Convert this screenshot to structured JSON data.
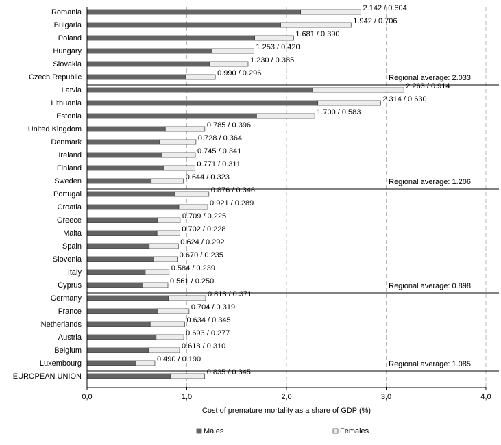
{
  "chart_data": {
    "type": "bar",
    "orientation": "horizontal",
    "stacked": true,
    "xlabel": "Cost of premature mortality as a share of GDP (%)",
    "ylabel": "",
    "title": "",
    "xlim": [
      0,
      4
    ],
    "x_ticks": [
      "0,0",
      "1,0",
      "2,0",
      "3,0",
      "4,0"
    ],
    "grid": "vertical dashed",
    "legend_position": "bottom",
    "colors": {
      "males": "#646464",
      "females": "#ececec",
      "outline": "#333333"
    },
    "series": [
      {
        "name": "Males",
        "values": [
          2.142,
          1.942,
          1.681,
          1.253,
          1.23,
          0.99,
          2.263,
          2.314,
          1.7,
          0.785,
          0.728,
          0.745,
          0.771,
          0.644,
          0.876,
          0.921,
          0.709,
          0.702,
          0.624,
          0.67,
          0.584,
          0.561,
          0.818,
          0.704,
          0.634,
          0.693,
          0.618,
          0.49,
          0.835
        ]
      },
      {
        "name": "Females",
        "values": [
          0.604,
          0.706,
          0.39,
          0.42,
          0.385,
          0.296,
          0.914,
          0.63,
          0.583,
          0.396,
          0.364,
          0.341,
          0.311,
          0.323,
          0.346,
          0.289,
          0.225,
          0.228,
          0.292,
          0.235,
          0.239,
          0.25,
          0.371,
          0.319,
          0.345,
          0.277,
          0.31,
          0.19,
          0.345
        ]
      }
    ],
    "categories": [
      "Romania",
      "Bulgaria",
      "Poland",
      "Hungary",
      "Slovakia",
      "Czech Republic",
      "Latvia",
      "Lithuania",
      "Estonia",
      "United Kingdom",
      "Denmark",
      "Ireland",
      "Finland",
      "Sweden",
      "Portugal",
      "Croatia",
      "Greece",
      "Malta",
      "Spain",
      "Slovenia",
      "Italy",
      "Cyprus",
      "Germany",
      "France",
      "Netherlands",
      "Austria",
      "Belgium",
      "Luxembourg",
      "EUROPEAN UNION"
    ],
    "value_labels": [
      "2.142 / 0.604",
      "1.942 / 0.706",
      "1.681 / 0.390",
      "1.253 / 0.420",
      "1.230 / 0.385",
      "0.990 / 0.296",
      "2.263 / 0.914",
      "2.314 / 0.630",
      "1.700 / 0.583",
      "0.785 / 0.396",
      "0.728 / 0.364",
      "0.745 / 0.341",
      "0.771 / 0.311",
      "0.644 / 0.323",
      "0.876 / 0.346",
      "0.921 / 0.289",
      "0.709 / 0.225",
      "0.702 / 0.228",
      "0.624 / 0.292",
      "0.670 / 0.235",
      "0.584 / 0.239",
      "0.561 / 0.250",
      "0.818 / 0.371",
      "0.704 / 0.319",
      "0.634 / 0.345",
      "0.693 / 0.277",
      "0.618 / 0.310",
      "0.490 / 0.190",
      "0.835 / 0.345"
    ],
    "group_ends": [
      5,
      13,
      21,
      27
    ],
    "annotations": [
      "Regional average: 2.033",
      "Regional average: 1.206",
      "Regional average: 0.898",
      "Regional average: 1.085"
    ]
  }
}
